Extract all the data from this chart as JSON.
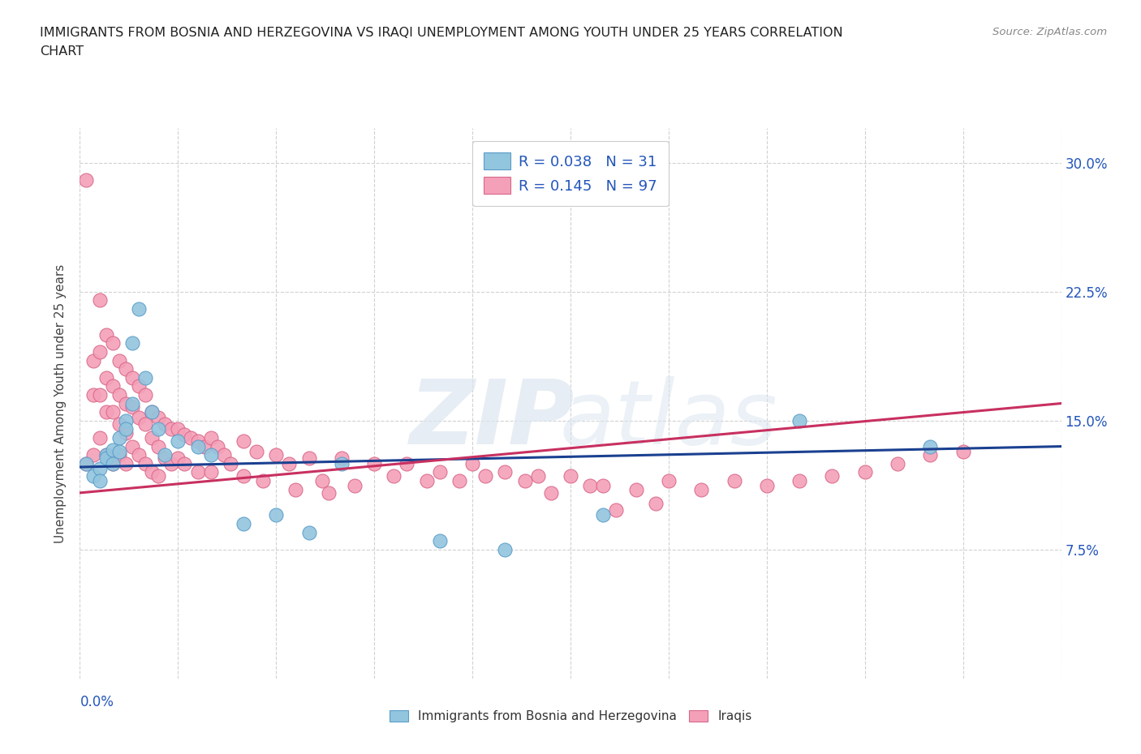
{
  "title_line1": "IMMIGRANTS FROM BOSNIA AND HERZEGOVINA VS IRAQI UNEMPLOYMENT AMONG YOUTH UNDER 25 YEARS CORRELATION",
  "title_line2": "CHART",
  "source": "Source: ZipAtlas.com",
  "ylabel": "Unemployment Among Youth under 25 years",
  "xlim": [
    0.0,
    0.15
  ],
  "ylim": [
    0.0,
    0.32
  ],
  "yticks": [
    0.075,
    0.15,
    0.225,
    0.3
  ],
  "ytick_labels": [
    "7.5%",
    "15.0%",
    "22.5%",
    "30.0%"
  ],
  "blue_color": "#92c5de",
  "blue_edge": "#5b9dc9",
  "pink_color": "#f4a0b8",
  "pink_edge": "#d9688a",
  "line_blue_color": "#1a4090",
  "line_pink_color": "#c83060",
  "legend_label1": "R = 0.038   N = 31",
  "legend_label2": "R = 0.145   N = 97",
  "bottom_label1": "Immigrants from Bosnia and Herzegovina",
  "bottom_label2": "Iraqis",
  "bosnia_x": [
    0.001,
    0.002,
    0.003,
    0.003,
    0.004,
    0.004,
    0.005,
    0.005,
    0.006,
    0.006,
    0.007,
    0.007,
    0.008,
    0.008,
    0.009,
    0.01,
    0.011,
    0.012,
    0.013,
    0.015,
    0.018,
    0.02,
    0.025,
    0.03,
    0.035,
    0.04,
    0.055,
    0.065,
    0.08,
    0.11,
    0.13
  ],
  "bosnia_y": [
    0.125,
    0.118,
    0.122,
    0.115,
    0.13,
    0.128,
    0.133,
    0.125,
    0.14,
    0.132,
    0.15,
    0.145,
    0.16,
    0.195,
    0.215,
    0.175,
    0.155,
    0.145,
    0.13,
    0.138,
    0.135,
    0.13,
    0.09,
    0.095,
    0.085,
    0.125,
    0.08,
    0.075,
    0.095,
    0.15,
    0.135
  ],
  "iraq_x": [
    0.001,
    0.001,
    0.002,
    0.002,
    0.002,
    0.003,
    0.003,
    0.003,
    0.003,
    0.004,
    0.004,
    0.004,
    0.004,
    0.005,
    0.005,
    0.005,
    0.005,
    0.006,
    0.006,
    0.006,
    0.006,
    0.007,
    0.007,
    0.007,
    0.007,
    0.008,
    0.008,
    0.008,
    0.009,
    0.009,
    0.009,
    0.01,
    0.01,
    0.01,
    0.011,
    0.011,
    0.011,
    0.012,
    0.012,
    0.012,
    0.013,
    0.013,
    0.014,
    0.014,
    0.015,
    0.015,
    0.016,
    0.016,
    0.017,
    0.018,
    0.018,
    0.019,
    0.02,
    0.02,
    0.021,
    0.022,
    0.023,
    0.025,
    0.025,
    0.027,
    0.028,
    0.03,
    0.032,
    0.033,
    0.035,
    0.037,
    0.038,
    0.04,
    0.042,
    0.045,
    0.048,
    0.05,
    0.053,
    0.055,
    0.058,
    0.06,
    0.062,
    0.065,
    0.068,
    0.07,
    0.072,
    0.075,
    0.078,
    0.08,
    0.082,
    0.085,
    0.088,
    0.09,
    0.095,
    0.1,
    0.105,
    0.11,
    0.115,
    0.12,
    0.125,
    0.13,
    0.135
  ],
  "iraq_y": [
    0.29,
    0.125,
    0.185,
    0.165,
    0.13,
    0.22,
    0.19,
    0.165,
    0.14,
    0.2,
    0.175,
    0.155,
    0.13,
    0.195,
    0.17,
    0.155,
    0.125,
    0.185,
    0.165,
    0.148,
    0.13,
    0.18,
    0.16,
    0.143,
    0.125,
    0.175,
    0.158,
    0.135,
    0.17,
    0.152,
    0.13,
    0.165,
    0.148,
    0.125,
    0.155,
    0.14,
    0.12,
    0.152,
    0.135,
    0.118,
    0.148,
    0.128,
    0.145,
    0.125,
    0.145,
    0.128,
    0.142,
    0.125,
    0.14,
    0.138,
    0.12,
    0.135,
    0.14,
    0.12,
    0.135,
    0.13,
    0.125,
    0.138,
    0.118,
    0.132,
    0.115,
    0.13,
    0.125,
    0.11,
    0.128,
    0.115,
    0.108,
    0.128,
    0.112,
    0.125,
    0.118,
    0.125,
    0.115,
    0.12,
    0.115,
    0.125,
    0.118,
    0.12,
    0.115,
    0.118,
    0.108,
    0.118,
    0.112,
    0.112,
    0.098,
    0.11,
    0.102,
    0.115,
    0.11,
    0.115,
    0.112,
    0.115,
    0.118,
    0.12,
    0.125,
    0.13,
    0.132
  ]
}
